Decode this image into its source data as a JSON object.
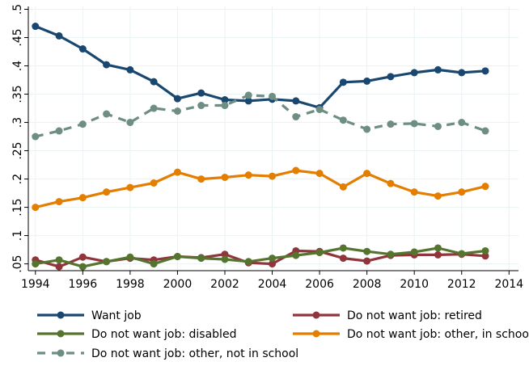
{
  "chart_data": {
    "type": "line",
    "title": "",
    "xlabel": "",
    "ylabel": "",
    "x": [
      1994,
      1995,
      1996,
      1997,
      1998,
      1999,
      2000,
      2001,
      2002,
      2003,
      2004,
      2005,
      2006,
      2007,
      2008,
      2009,
      2010,
      2011,
      2012,
      2013
    ],
    "xlim": [
      1993.7,
      2014.4
    ],
    "ylim": [
      0.038,
      0.505
    ],
    "xticks": [
      1994,
      1996,
      1998,
      2000,
      2002,
      2004,
      2006,
      2008,
      2010,
      2012,
      2014
    ],
    "xtick_labels": [
      "1994",
      "1996",
      "1998",
      "2000",
      "2002",
      "2004",
      "2006",
      "2008",
      "2010",
      "2012",
      "2014"
    ],
    "yticks": [
      0.05,
      0.1,
      0.15,
      0.2,
      0.25,
      0.3,
      0.35,
      0.4,
      0.45,
      0.5
    ],
    "ytick_labels": [
      ".05",
      ".1",
      ".15",
      ".2",
      ".25",
      ".3",
      ".35",
      ".4",
      ".45",
      ".5"
    ],
    "grid": true,
    "legend_position": "bottom",
    "series": [
      {
        "name": "Want job",
        "color": "#1a476f",
        "dashed": false,
        "values": [
          0.47,
          0.453,
          0.43,
          0.402,
          0.393,
          0.372,
          0.342,
          0.352,
          0.34,
          0.338,
          0.341,
          0.338,
          0.326,
          0.371,
          0.373,
          0.381,
          0.388,
          0.393,
          0.388,
          0.391
        ]
      },
      {
        "name": "Do not want job: retired",
        "color": "#90353b",
        "dashed": false,
        "values": [
          0.057,
          0.045,
          0.062,
          0.054,
          0.06,
          0.057,
          0.063,
          0.061,
          0.067,
          0.052,
          0.05,
          0.073,
          0.072,
          0.06,
          0.055,
          0.065,
          0.066,
          0.066,
          0.067,
          0.064
        ]
      },
      {
        "name": "Do not want job: disabled",
        "color": "#55752f",
        "dashed": false,
        "values": [
          0.05,
          0.057,
          0.045,
          0.054,
          0.062,
          0.05,
          0.063,
          0.06,
          0.058,
          0.054,
          0.06,
          0.065,
          0.07,
          0.078,
          0.072,
          0.067,
          0.071,
          0.078,
          0.068,
          0.073
        ]
      },
      {
        "name": "Do not want job: other, in school",
        "color": "#e37e00",
        "dashed": false,
        "values": [
          0.15,
          0.16,
          0.167,
          0.177,
          0.185,
          0.193,
          0.212,
          0.2,
          0.203,
          0.207,
          0.205,
          0.215,
          0.21,
          0.186,
          0.21,
          0.192,
          0.177,
          0.17,
          0.177,
          0.187
        ]
      },
      {
        "name": "Do not want job: other, not in school",
        "color": "#6e8e84",
        "dashed": true,
        "values": [
          0.275,
          0.285,
          0.297,
          0.315,
          0.3,
          0.325,
          0.32,
          0.33,
          0.33,
          0.348,
          0.346,
          0.31,
          0.323,
          0.304,
          0.288,
          0.297,
          0.298,
          0.293,
          0.3,
          0.285
        ]
      }
    ]
  }
}
